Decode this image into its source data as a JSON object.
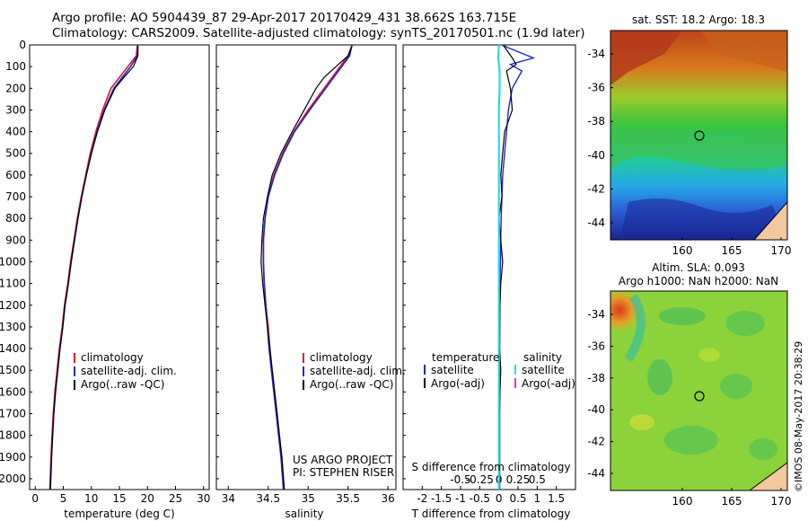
{
  "header": {
    "line1": "Argo profile: AO 5904439_87 29-Apr-2017 20170429_431 38.662S 163.715E",
    "line2": "Climatology: CARS2009. Satellite-adjusted climatology: synTS_20170501.nc (1.9d later)"
  },
  "depth_ticks": [
    "0",
    "100",
    "200",
    "300",
    "400",
    "500",
    "600",
    "700",
    "800",
    "900",
    "1000",
    "1100",
    "1200",
    "1300",
    "1400",
    "1500",
    "1600",
    "1700",
    "1800",
    "1900",
    "2000"
  ],
  "panel1": {
    "xlabel": "temperature (deg C)",
    "xticks": [
      "0",
      "5",
      "10",
      "15",
      "20",
      "25",
      "30"
    ],
    "legend": [
      "climatology",
      "satellite-adj. clim.",
      "Argo(..raw -QC)"
    ]
  },
  "panel2": {
    "xlabel": "salinity",
    "xticks": [
      "34",
      "34.5",
      "35",
      "35.5",
      "36"
    ],
    "legend": [
      "climatology",
      "satellite-adj. clim.",
      "Argo(..raw -QC)"
    ],
    "project_line1": "US ARGO PROJECT",
    "project_line2": "PI: STEPHEN RISER"
  },
  "panel3": {
    "xlabel": "T difference from climatology",
    "xlabel_top": "S difference from climatology",
    "xticks": [
      "-2",
      "-1.5",
      "-1",
      "-0.5",
      "0",
      "0.5",
      "1",
      "1.5"
    ],
    "xticks_s": [
      "-0.5",
      "-0.25",
      "0",
      "0.25",
      "0.5"
    ],
    "legend_temperature_title": "temperature",
    "legend_salinity_title": "salinity",
    "legend_temperature": [
      "satellite",
      "Argo(-adj)"
    ],
    "legend_salinity": [
      "satellite",
      "Argo(-adj)"
    ]
  },
  "map1": {
    "title": "sat. SST: 18.2 Argo: 18.3",
    "yticks": [
      "-34",
      "-36",
      "-38",
      "-40",
      "-42",
      "-44"
    ],
    "xticks": [
      "160",
      "165",
      "170"
    ]
  },
  "map2": {
    "title1": "Altim. SLA: 0.093",
    "title2": "Argo h1000: NaN h2000: NaN",
    "yticks": [
      "-34",
      "-36",
      "-38",
      "-40",
      "-42",
      "-44"
    ],
    "xticks": [
      "160",
      "165",
      "170"
    ]
  },
  "watermark": "©IMOS 08-May-2017 20:38:29",
  "colors": {
    "climatology": "#e8141c",
    "satellite_adj": "#1a28d8",
    "argo": "#000000",
    "satellite_s": "#22dde8",
    "argo_s": "#e030d8"
  },
  "chart_data": [
    {
      "type": "line",
      "xlabel": "temperature (deg C)",
      "ylabel": "",
      "xlim": [
        -1,
        31
      ],
      "ylim": [
        2050,
        0
      ],
      "series": [
        {
          "name": "climatology",
          "x": [
            18.2,
            18.0,
            16.5,
            15.0,
            13.5,
            12.0,
            10.8,
            9.8,
            9.0,
            8.2,
            7.5,
            6.9,
            6.3,
            5.8,
            5.2,
            4.8,
            4.3,
            3.9,
            3.5,
            3.2,
            3.0,
            2.8,
            2.6
          ],
          "y": [
            0,
            50,
            100,
            150,
            200,
            300,
            400,
            500,
            600,
            700,
            800,
            900,
            1000,
            1100,
            1200,
            1300,
            1400,
            1500,
            1600,
            1700,
            1800,
            1900,
            2050
          ]
        },
        {
          "name": "satellite-adj. clim.",
          "x": [
            18.3,
            18.2,
            17.0,
            15.5,
            14.0,
            12.3,
            11.0,
            10.0,
            9.1,
            8.3,
            7.6,
            7.0,
            6.4,
            5.9,
            5.3,
            4.9,
            4.4,
            4.0,
            3.6,
            3.3,
            3.1,
            2.9,
            2.7
          ],
          "y": [
            0,
            50,
            100,
            150,
            200,
            300,
            400,
            500,
            600,
            700,
            800,
            900,
            1000,
            1100,
            1200,
            1300,
            1400,
            1500,
            1600,
            1700,
            1800,
            1900,
            2050
          ]
        },
        {
          "name": "Argo(..raw -QC)",
          "x": [
            18.3,
            18.3,
            17.5,
            15.8,
            14.2,
            12.4,
            11.1,
            10.0,
            9.1,
            8.3,
            7.6,
            7.0,
            6.4,
            5.9,
            5.3,
            4.9,
            4.4,
            4.0,
            3.6,
            3.3,
            3.1,
            2.9,
            2.7
          ],
          "y": [
            5,
            50,
            100,
            150,
            200,
            300,
            400,
            500,
            600,
            700,
            800,
            900,
            1000,
            1100,
            1200,
            1300,
            1400,
            1500,
            1600,
            1700,
            1800,
            1900,
            2050
          ]
        }
      ]
    },
    {
      "type": "line",
      "xlabel": "salinity",
      "ylabel": "",
      "xlim": [
        33.85,
        36.1
      ],
      "ylim": [
        2050,
        0
      ],
      "series": [
        {
          "name": "climatology",
          "x": [
            35.55,
            35.5,
            35.4,
            35.3,
            35.2,
            35.0,
            34.82,
            34.68,
            34.57,
            34.5,
            34.46,
            34.44,
            34.44,
            34.45,
            34.47,
            34.5,
            34.52,
            34.55,
            34.58,
            34.61,
            34.64,
            34.67,
            34.7
          ],
          "y": [
            0,
            50,
            100,
            150,
            200,
            300,
            400,
            500,
            600,
            700,
            800,
            900,
            1000,
            1100,
            1200,
            1300,
            1400,
            1500,
            1600,
            1700,
            1800,
            1900,
            2050
          ]
        },
        {
          "name": "satellite-adj. clim.",
          "x": [
            35.55,
            35.52,
            35.42,
            35.32,
            35.22,
            35.02,
            34.83,
            34.69,
            34.58,
            34.5,
            34.46,
            34.44,
            34.44,
            34.45,
            34.47,
            34.49,
            34.51,
            34.54,
            34.57,
            34.6,
            34.63,
            34.66,
            34.69
          ],
          "y": [
            0,
            50,
            100,
            150,
            200,
            300,
            400,
            500,
            600,
            700,
            800,
            900,
            1000,
            1100,
            1200,
            1300,
            1400,
            1500,
            1600,
            1700,
            1800,
            1900,
            2050
          ]
        },
        {
          "name": "Argo(..raw -QC)",
          "x": [
            35.55,
            35.5,
            35.35,
            35.2,
            35.1,
            34.95,
            34.8,
            34.66,
            34.55,
            34.49,
            34.44,
            34.42,
            34.41,
            34.43,
            34.46,
            34.49,
            34.52,
            34.55,
            34.58,
            34.61,
            34.64,
            34.67,
            34.7
          ],
          "y": [
            5,
            50,
            100,
            150,
            200,
            300,
            400,
            500,
            600,
            700,
            800,
            900,
            1000,
            1100,
            1200,
            1300,
            1400,
            1500,
            1600,
            1700,
            1800,
            1900,
            2050
          ]
        }
      ]
    },
    {
      "type": "line",
      "xlabel": "T difference from climatology",
      "ylabel": "",
      "xlim": [
        -2.5,
        2.0
      ],
      "ylim": [
        2050,
        0
      ],
      "series": [
        {
          "name": "satellite",
          "x": [
            0.1,
            0.2,
            0.9,
            0.3,
            0.6,
            0.35,
            0.25,
            0.2,
            0.15,
            0.1,
            0.08,
            0.06,
            0.05,
            0.04,
            0.03,
            0.02,
            0.02,
            0.02,
            0.02,
            0.02,
            0.02,
            0.02
          ],
          "y": [
            0,
            10,
            60,
            90,
            120,
            200,
            300,
            400,
            500,
            600,
            700,
            800,
            900,
            1000,
            1100,
            1200,
            1400,
            1500,
            1600,
            1700,
            1900,
            2050
          ]
        },
        {
          "name": "Argo(-adj)",
          "x": [
            0.1,
            0.15,
            0.35,
            0.45,
            0.2,
            0.3,
            0.35,
            0.15,
            0.1,
            0.05,
            0.08,
            0.0,
            0.05,
            0.1,
            0.05,
            0.03,
            0.02,
            0.05,
            0.03,
            0.02,
            0.02,
            0.02
          ],
          "y": [
            0,
            10,
            60,
            90,
            120,
            200,
            300,
            400,
            500,
            600,
            700,
            800,
            900,
            1000,
            1100,
            1200,
            1400,
            1500,
            1600,
            1700,
            1900,
            2050
          ]
        },
        {
          "name": "satellite (salinity)",
          "x": [
            0.02,
            0.0,
            -0.02,
            0.0,
            0.02,
            0.02,
            0.0,
            0.0,
            0.0,
            0.0,
            0.0,
            0.0,
            0.0,
            0.0,
            0.0,
            0.0,
            0.0,
            0.0,
            0.0,
            0.0,
            0.0,
            0.0
          ],
          "y": [
            0,
            10,
            60,
            90,
            120,
            200,
            300,
            400,
            500,
            600,
            700,
            800,
            900,
            1000,
            1100,
            1200,
            1400,
            1500,
            1600,
            1700,
            1900,
            2050
          ]
        }
      ]
    }
  ]
}
